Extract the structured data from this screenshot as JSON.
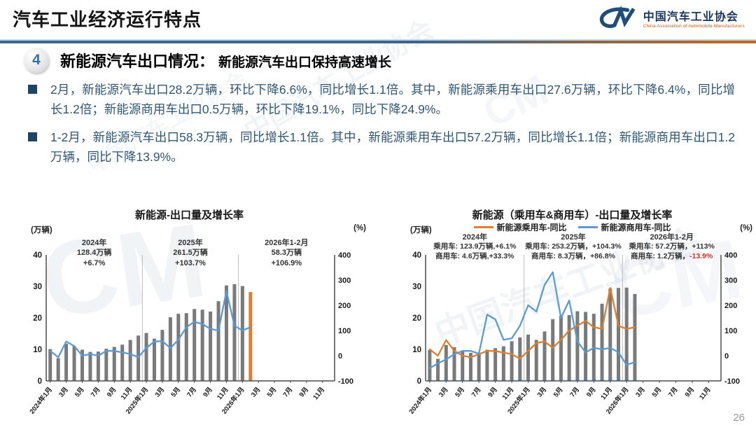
{
  "slide": {
    "header": {
      "title": "汽车工业经济运行特点"
    },
    "logo": {
      "mark": "CM",
      "name_cn": "中国汽车工业协会",
      "name_en": "China Association of Automobile Manufacturers"
    },
    "section": {
      "number": "4",
      "title": "新能源汽车出口情况：",
      "subtitle": "新能源汽车出口保持高速增长"
    },
    "bullets": [
      "2月，新能源汽车出口28.2万辆，环比下降6.6%，同比增长1.1倍。其中，新能源乘用车出口27.6万辆，环比下降6.4%，同比增长1.2倍；新能源商用车出口0.5万辆，环比下降19.1%，同比下降24.9%。",
      "1-2月，新能源汽车出口58.3万辆，同比增长1.1倍。其中，新能源乘用车出口57.2万辆，同比增长1.1倍；新能源商用车出口1.2万辆，同比下降13.9%。"
    ],
    "watermark": {
      "text": "中国汽车工业协会",
      "mark": "CM"
    },
    "page_number": "26"
  },
  "chart_data": [
    {
      "type": "bar+line",
      "title": "新能源-出口量及增长率",
      "unit_left": "(万辆)",
      "unit_right": "(%)",
      "axis": {
        "left": {
          "min": 0,
          "max": 40,
          "ticks": [
            0,
            10,
            20,
            30,
            40
          ]
        },
        "right": {
          "min": -100,
          "max": 400,
          "ticks": [
            -100,
            0,
            100,
            200,
            300,
            400
          ]
        },
        "months_total": 36,
        "tick_every": 2
      },
      "x_ticklabels": [
        "2024年1月",
        "3月",
        "5月",
        "7月",
        "9月",
        "11月",
        "2025年1月",
        "3月",
        "5月",
        "7月",
        "9月",
        "11月",
        "2026年1月",
        "3月",
        "5月",
        "7月",
        "9月",
        "11月"
      ],
      "months": [
        "2024年1月",
        "2024年2月",
        "2024年3月",
        "2024年4月",
        "2024年5月",
        "2024年6月",
        "2024年7月",
        "2024年8月",
        "2024年9月",
        "2024年10月",
        "2024年11月",
        "2024年12月",
        "2025年1月",
        "2025年2月",
        "2025年3月",
        "2025年4月",
        "2025年5月",
        "2025年6月",
        "2025年7月",
        "2025年8月",
        "2025年9月",
        "2025年10月",
        "2025年11月",
        "2025年12月",
        "2026年1月",
        "2026年2月"
      ],
      "separators": [
        12,
        24
      ],
      "bars": [
        {
          "name": "新能源汽车出口量(万辆)",
          "color": "#7a7a7a",
          "highlight": {
            "index": 25,
            "color": "#E07D2E"
          },
          "values": [
            10.1,
            7.2,
            11.8,
            11.0,
            9.9,
            9.2,
            9.3,
            10.2,
            10.8,
            11.5,
            13.0,
            14.4,
            15.2,
            13.4,
            16.2,
            20.2,
            21.3,
            21.5,
            22.8,
            22.6,
            22.0,
            25.3,
            30.3,
            30.7,
            30.1,
            28.2
          ]
        }
      ],
      "lines": [
        {
          "name": "新能源汽车出口同比增长率(%)",
          "color": "#5B9BD5",
          "values": [
            19,
            -6,
            56,
            38,
            0,
            6,
            0,
            19,
            19,
            13,
            6,
            -6,
            31,
            56,
            58,
            30,
            63,
            113,
            135,
            125,
            106,
            100,
            256,
            119,
            100,
            113
          ]
        }
      ],
      "annotations": [
        {
          "title": "2024年",
          "lines": [
            {
              "text": "128.4万辆"
            },
            {
              "text": "+6.7%"
            }
          ]
        },
        {
          "title": "2025年",
          "lines": [
            {
              "text": "261.5万辆"
            },
            {
              "text": "+103.7%"
            }
          ]
        },
        {
          "title": "2026年1-2月",
          "lines": [
            {
              "text": "58.3万辆"
            },
            {
              "text": "+106.9%"
            }
          ]
        }
      ]
    },
    {
      "type": "bar+line",
      "title": "新能源（乘用车&商用车）-出口量及增长率",
      "unit_left": "(万辆)",
      "unit_right": "(%)",
      "legend": [
        {
          "label": "新能源乘用车-同比",
          "color": "#E07D2E"
        },
        {
          "label": "新能源商用车-同比",
          "color": "#5B9BD5"
        }
      ],
      "axis": {
        "left": {
          "min": 0,
          "max": 40,
          "ticks": [
            0,
            10,
            20,
            30,
            40
          ]
        },
        "right": {
          "min": -100,
          "max": 400,
          "ticks": [
            -100,
            0,
            100,
            200,
            300,
            400
          ]
        },
        "months_total": 36,
        "tick_every": 2
      },
      "x_ticklabels": [
        "2024年1月",
        "3月",
        "5月",
        "7月",
        "9月",
        "11月",
        "2025年1月",
        "3月",
        "5月",
        "7月",
        "9月",
        "11月",
        "2026年1月",
        "3月",
        "5月",
        "7月",
        "9月",
        "11月"
      ],
      "months": [
        "2024年1月",
        "2024年2月",
        "2024年3月",
        "2024年4月",
        "2024年5月",
        "2024年6月",
        "2024年7月",
        "2024年8月",
        "2024年9月",
        "2024年10月",
        "2024年11月",
        "2024年12月",
        "2025年1月",
        "2025年2月",
        "2025年3月",
        "2025年4月",
        "2025年5月",
        "2025年6月",
        "2025年7月",
        "2025年8月",
        "2025年9月",
        "2025年10月",
        "2025年11月",
        "2025年12月",
        "2026年1月",
        "2026年2月"
      ],
      "separators": [
        12,
        24
      ],
      "bars": [
        {
          "name": "新能源乘用车出口量(万辆)",
          "color": "#7a7a7a",
          "values": [
            9.8,
            7.0,
            11.4,
            10.7,
            9.5,
            8.9,
            8.9,
            9.9,
            10.4,
            11.0,
            12.6,
            13.8,
            14.7,
            13.0,
            15.7,
            19.6,
            20.7,
            20.9,
            22.1,
            21.9,
            21.3,
            24.5,
            29.3,
            29.5,
            29.6,
            27.6
          ]
        },
        {
          "name": "新能源商用车出口量(万辆)",
          "color": "#4E81BD",
          "values": [
            0.3,
            0.2,
            0.4,
            0.3,
            0.4,
            0.3,
            0.4,
            0.3,
            0.4,
            0.5,
            0.4,
            0.7,
            0.5,
            0.4,
            0.5,
            0.6,
            0.6,
            0.7,
            0.7,
            0.7,
            0.7,
            0.8,
            1.0,
            1.1,
            0.7,
            0.5
          ]
        }
      ],
      "lines": [
        {
          "name": "新能源乘用车-同比(%)",
          "color": "#E07D2E",
          "values": [
            25,
            0,
            62,
            19,
            0,
            -6,
            6,
            19,
            19,
            12,
            6,
            -12,
            19,
            50,
            56,
            31,
            63,
            100,
            119,
            138,
            113,
            106,
            269,
            119,
            106,
            113
          ]
        },
        {
          "name": "新能源商用车-同比(%)",
          "color": "#5B9BD5",
          "values": [
            -50,
            -30,
            -15,
            6,
            19,
            19,
            8,
            163,
            144,
            63,
            69,
            119,
            200,
            175,
            281,
            331,
            150,
            219,
            56,
            13,
            31,
            25,
            31,
            13,
            -37,
            -25
          ]
        }
      ],
      "annotations": [
        {
          "title": "2024年",
          "lines": [
            {
              "text": "乘用车: 123.9万辆,+6.1%"
            },
            {
              "text": "商用车: 4.6万辆,+33.3%"
            }
          ]
        },
        {
          "title": "2025年",
          "lines": [
            {
              "text": "乘用车: 253.2万辆，+104.3%"
            },
            {
              "text": "商用车: 8.3万辆，+86.8%"
            }
          ]
        },
        {
          "title": "2026年1-2月",
          "lines": [
            {
              "text": "乘用车: 57.2万辆，+113%"
            },
            {
              "text": "商用车: 1.2万辆，",
              "red": "-13.9%"
            }
          ]
        }
      ]
    }
  ]
}
